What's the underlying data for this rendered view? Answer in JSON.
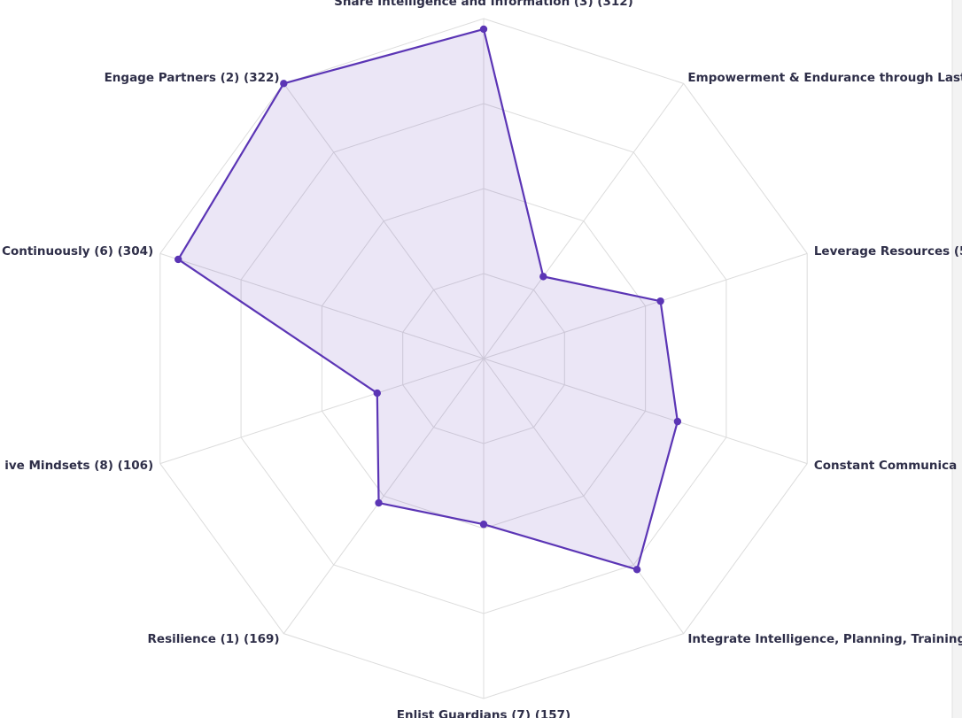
{
  "chart_data": {
    "type": "radar",
    "categories": [
      "Share Intelligence and Information (3) (312)",
      "Empowerment & Endurance through Last",
      "Leverage Resources (5",
      "Constant Communica",
      "Integrate Intelligence, Planning, Training",
      "Enlist Guardians (7) (157)",
      "Resilience (1) (169)",
      "ive Mindsets (8) (106)",
      "Continuously (6) (304)",
      "Engage Partners (2) (322)"
    ],
    "values": [
      312,
      96,
      176,
      193,
      247,
      157,
      169,
      106,
      304,
      322
    ],
    "color": "#5b35b5",
    "rlim": [
      0,
      322
    ],
    "rticks": [
      80.5,
      161,
      241.5,
      322
    ],
    "grid": true
  }
}
